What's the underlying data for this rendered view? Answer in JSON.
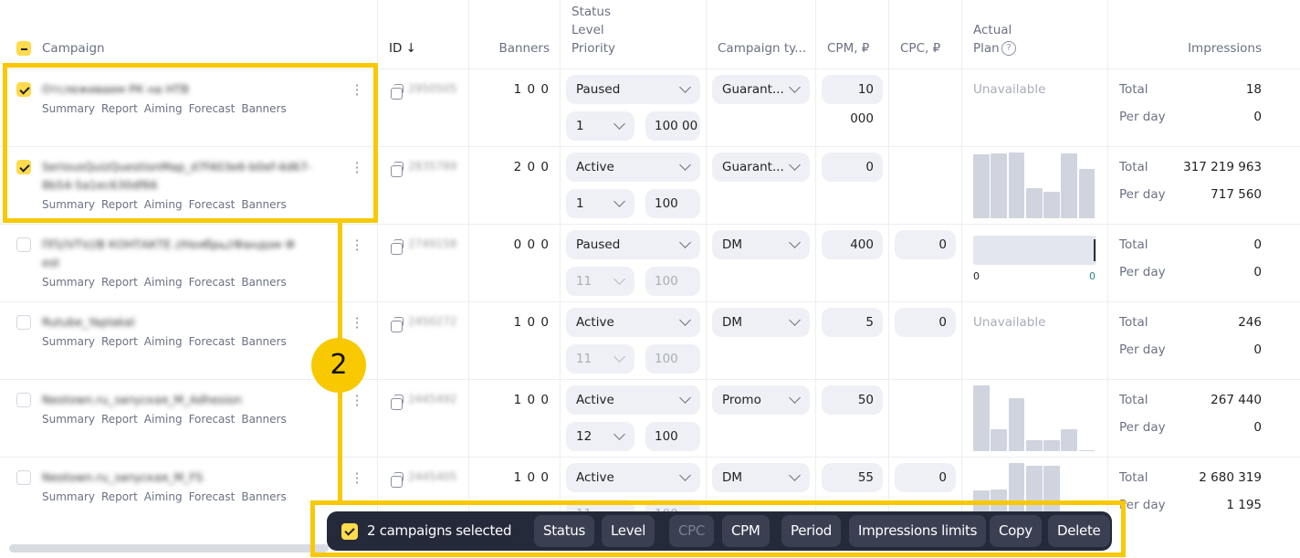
{
  "header": {
    "campaign": "Campaign",
    "id": "ID ↓",
    "banners": "Banners",
    "status1": "Status",
    "status2": "Level",
    "status3": "Priority",
    "type": "Campaign ty...",
    "cpm": "CPM, ₽",
    "cpc": "CPC, ₽",
    "actual": "Actual",
    "plan": "Plan",
    "impressions": "Impressions",
    "help_icon": "?"
  },
  "links": [
    "Summary",
    "Report",
    "Aiming",
    "Forecast",
    "Banners"
  ],
  "labels": {
    "total": "Total",
    "per_day": "Per day",
    "unavailable": "Unavailable"
  },
  "rows": [
    {
      "checked": true,
      "name": "Отслеживаем РК на НТВ",
      "id": "2950505",
      "banners": "1 0 0",
      "status": "Paused",
      "priority": "1",
      "limit": "100 00",
      "priority_disabled": false,
      "type": "Guarant...",
      "cpm": "10 000",
      "cpc": null,
      "plan": {
        "kind": "unavailable"
      },
      "total": "18",
      "per_day": "0"
    },
    {
      "checked": true,
      "name": "SeriousQuizQuestionMap_d7f403e6-b0ef-4d67-",
      "name2": "8b54-5a1ec630df66",
      "id": "2835789",
      "banners": "2 0 0",
      "status": "Active",
      "priority": "1",
      "limit": "100",
      "priority_disabled": false,
      "type": "Guarant...",
      "cpm": "0",
      "cpc": null,
      "plan": {
        "kind": "bars",
        "values": [
          0.97,
          0.99,
          1,
          0.46,
          0.4,
          0.99,
          0.75
        ]
      },
      "total": "317 219 963",
      "per_day": "717 560"
    },
    {
      "checked": false,
      "name": "ПП//VTV//В КОНТАКТЕ //Ноябрь//Фандом Ф",
      "name2": "еst",
      "id": "2749158",
      "banners": "0 0 0",
      "status": "Paused",
      "priority": "11",
      "limit": "100",
      "priority_disabled": true,
      "type": "DM",
      "cpm": "400",
      "cpc": "0",
      "plan": {
        "kind": "progress",
        "progress": 1,
        "min": "0",
        "max": "0"
      },
      "total": "0",
      "per_day": "0"
    },
    {
      "checked": false,
      "name": "Rutube_Yaplakal",
      "id": "2450272",
      "banners": "1 0 0",
      "status": "Active",
      "priority": "11",
      "limit": "100",
      "priority_disabled": true,
      "type": "DM",
      "cpm": "5",
      "cpc": "0",
      "plan": {
        "kind": "unavailable"
      },
      "total": "246",
      "per_day": "0"
    },
    {
      "checked": false,
      "name": "Neotown.ru_запуская_М_Adhesion",
      "id": "2445492",
      "banners": "1 0 0",
      "status": "Active",
      "priority": "12",
      "limit": "100",
      "priority_disabled": false,
      "type": "Promo",
      "cpm": "50",
      "cpc": null,
      "plan": {
        "kind": "bars",
        "values": [
          1,
          0.33,
          0.8,
          0.17,
          0.17,
          0.33,
          0.02
        ]
      },
      "total": "267 440",
      "per_day": "0"
    },
    {
      "checked": false,
      "name": "Neotown.ru_запуская_М_FS",
      "id": "2445405",
      "banners": "1 0 0",
      "status": "Active",
      "priority": "11",
      "limit": "100",
      "priority_disabled": true,
      "type": "DM",
      "cpm": "55",
      "cpc": "0",
      "plan": {
        "kind": "bars",
        "values": [
          0.58,
          0.6,
          1,
          0.96,
          0.96
        ]
      },
      "total": "2 680 319",
      "per_day": "1 195"
    }
  ],
  "toolbar": {
    "selected": "2 campaigns selected",
    "buttons": [
      {
        "label": "Status",
        "disabled": false
      },
      {
        "label": "Level",
        "disabled": false
      },
      {
        "label": "CPC",
        "disabled": true
      },
      {
        "label": "CPM",
        "disabled": false
      },
      {
        "label": "Period",
        "disabled": false
      },
      {
        "label": "Impressions limits",
        "disabled": false
      },
      {
        "label": "Copy",
        "disabled": false
      },
      {
        "label": "Delete",
        "disabled": false
      }
    ]
  },
  "annotation": {
    "step": "2"
  },
  "colors": {
    "accent": "#ffdb4d",
    "annotation": "#f8c900",
    "toolbar": "#252a3a"
  }
}
